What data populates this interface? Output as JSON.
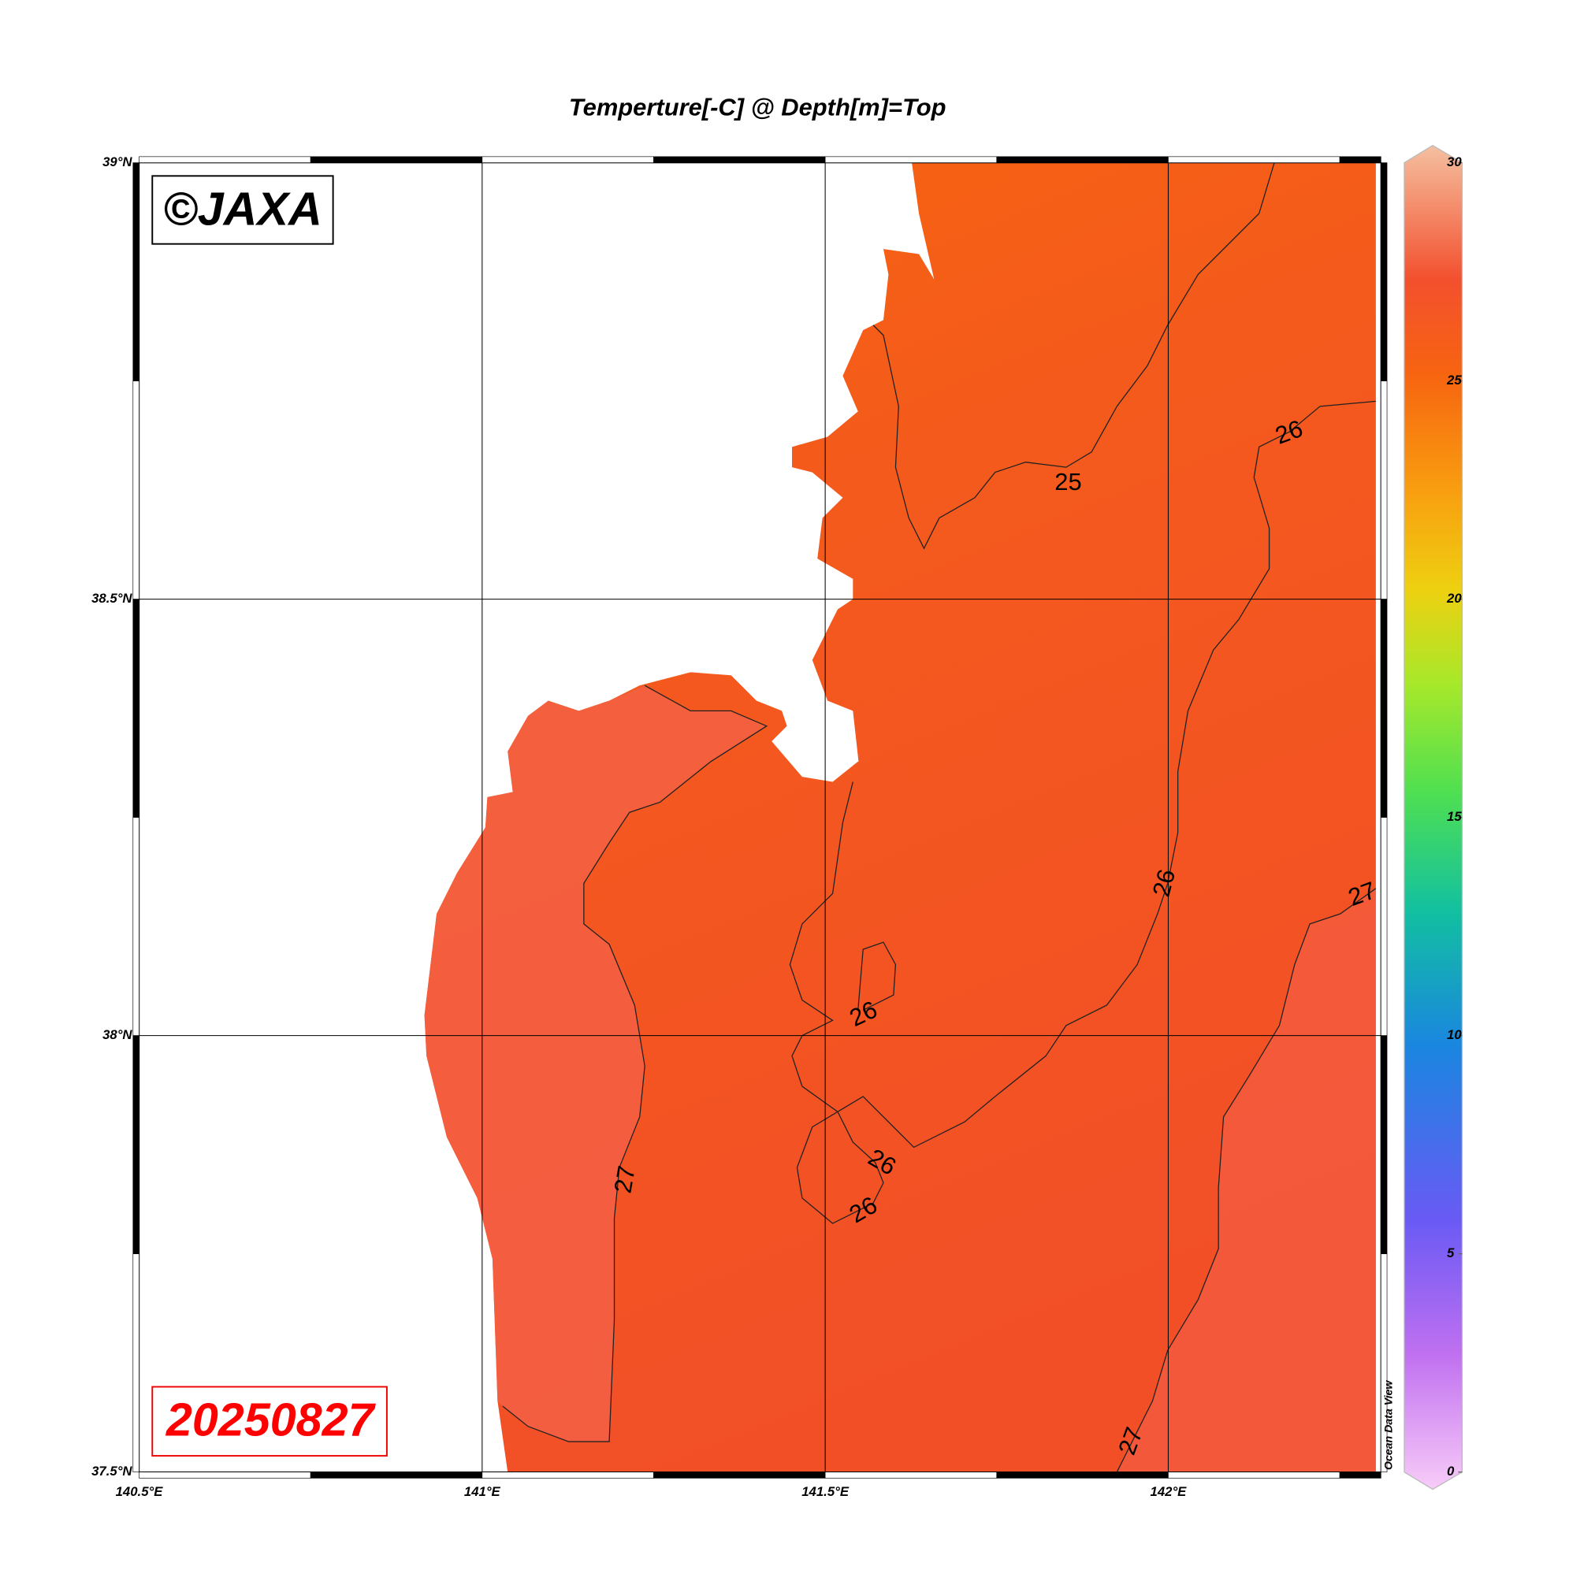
{
  "title": "Temperture[-C] @ Depth[m]=Top",
  "watermark": "©JAXA",
  "date": "20250827",
  "credit": "Ocean Data View",
  "map": {
    "lonlim": [
      140.5,
      142.31
    ],
    "latlim": [
      37.5,
      39.0
    ],
    "lon_ticks": [
      {
        "value": 140.5,
        "label": "140.5°E"
      },
      {
        "value": 141,
        "label": "141°E"
      },
      {
        "value": 141.5,
        "label": "141.5°E"
      },
      {
        "value": 142,
        "label": "142°E"
      }
    ],
    "lat_ticks": [
      {
        "value": 37.5,
        "label": "37.5°N"
      },
      {
        "value": 38,
        "label": "38°N"
      },
      {
        "value": 38.5,
        "label": "38.5°N"
      },
      {
        "value": 39,
        "label": "39°N"
      }
    ],
    "grid": true
  },
  "colorbar": {
    "lim": [
      0,
      30
    ],
    "ticks": [
      0,
      5,
      10,
      15,
      20,
      25,
      30
    ]
  },
  "contour_labels": [
    26,
    25,
    26,
    27,
    26,
    26,
    26,
    27,
    27
  ]
}
